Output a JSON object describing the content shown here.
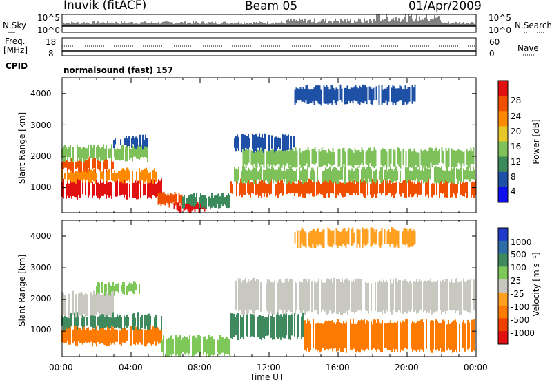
{
  "header": {
    "station": "Inuvik (fitACF)",
    "beam": "Beam 05",
    "date": "01/Apr/2009"
  },
  "top_panels": {
    "nsky_label": "N.Sky",
    "nsky_ticks": [
      "10^5",
      "10^0"
    ],
    "nsearch_ticks": [
      "10^5",
      "10^0"
    ],
    "nsearch_label": "N.Search",
    "freq_label": "Freq.",
    "freq_unit": "[MHz]",
    "freq_ticks": [
      "18",
      "8"
    ],
    "nave_ticks": [
      "60",
      "0"
    ],
    "nave_label": "Nave",
    "cpid_label": "CPID",
    "cpid_value": "normalsound (fast) 157"
  },
  "chart_data": [
    {
      "type": "heatmap",
      "name": "power",
      "ylabel": "Slant Range [km]",
      "y_ticks": [
        "1000",
        "2000",
        "3000",
        "4000"
      ],
      "ylim": [
        200,
        4500
      ],
      "xlim": [
        0,
        24
      ],
      "colorbar": {
        "label": "Power [dB]",
        "ticks": [
          "4",
          "8",
          "12",
          "16",
          "20",
          "24",
          "28"
        ],
        "range": [
          0,
          32
        ],
        "colors": [
          "#1010ee",
          "#1e50a6",
          "#3a8a5c",
          "#7ec05a",
          "#e6c82a",
          "#ff8a00",
          "#f05000",
          "#e21010"
        ]
      },
      "bands": [
        {
          "t0": 0.0,
          "t1": 5.8,
          "r0": 700,
          "r1": 1200,
          "level": 7
        },
        {
          "t0": 0.0,
          "t1": 5.5,
          "r0": 1200,
          "r1": 1550,
          "level": 5
        },
        {
          "t0": 0.0,
          "t1": 3.0,
          "r0": 1550,
          "r1": 1900,
          "level": 6
        },
        {
          "t0": 0.0,
          "t1": 5.0,
          "r0": 1900,
          "r1": 2300,
          "level": 3
        },
        {
          "t0": 3.0,
          "t1": 5.0,
          "r0": 2300,
          "r1": 2600,
          "level": 1
        },
        {
          "t0": 5.5,
          "t1": 7.0,
          "r0": 450,
          "r1": 800,
          "level": 6
        },
        {
          "t0": 6.5,
          "t1": 8.5,
          "r0": 250,
          "r1": 500,
          "level": 7
        },
        {
          "t0": 7.0,
          "t1": 9.8,
          "r0": 400,
          "r1": 750,
          "level": 2
        },
        {
          "t0": 9.8,
          "t1": 24.0,
          "r0": 750,
          "r1": 1200,
          "level": 6
        },
        {
          "t0": 10.0,
          "t1": 24.0,
          "r0": 1200,
          "r1": 1600,
          "level": 3
        },
        {
          "t0": 10.5,
          "t1": 24.0,
          "r0": 1700,
          "r1": 2200,
          "level": 3
        },
        {
          "t0": 10.0,
          "t1": 13.5,
          "r0": 2200,
          "r1": 2650,
          "level": 1
        },
        {
          "t0": 13.5,
          "t1": 20.5,
          "r0": 3700,
          "r1": 4200,
          "level": 1
        }
      ]
    },
    {
      "type": "heatmap",
      "name": "velocity",
      "ylabel": "Slant Range [km]",
      "xlabel": "Time UT",
      "x_ticks": [
        "00:00",
        "04:00",
        "08:00",
        "12:00",
        "16:00",
        "20:00",
        "00:00"
      ],
      "y_ticks": [
        "1000",
        "2000",
        "3000",
        "4000"
      ],
      "ylim": [
        200,
        4500
      ],
      "xlim": [
        0,
        24
      ],
      "colorbar": {
        "label": "Velocity [m s⁻¹]",
        "ticks": [
          "1000",
          "500",
          "100",
          "25",
          "-25",
          "-100",
          "-500",
          "-1000"
        ],
        "colors": [
          "#1e3cc8",
          "#2e6ea8",
          "#3e8a5e",
          "#7ec85a",
          "#c8c8c0",
          "#ffa020",
          "#ff7a00",
          "#f04000",
          "#e21010"
        ]
      },
      "bands": [
        {
          "t0": 0.0,
          "t1": 5.8,
          "r0": 600,
          "r1": 1100,
          "level": 6
        },
        {
          "t0": 0.0,
          "t1": 5.8,
          "r0": 1100,
          "r1": 1500,
          "level": 2
        },
        {
          "t0": 0.0,
          "t1": 3.0,
          "r0": 1500,
          "r1": 2200,
          "level": 4
        },
        {
          "t0": 2.0,
          "t1": 4.5,
          "r0": 2200,
          "r1": 2500,
          "level": 3
        },
        {
          "t0": 5.8,
          "t1": 9.8,
          "r0": 250,
          "r1": 800,
          "level": 3
        },
        {
          "t0": 9.8,
          "t1": 14.0,
          "r0": 800,
          "r1": 1500,
          "level": 2
        },
        {
          "t0": 14.0,
          "t1": 24.0,
          "r0": 400,
          "r1": 1300,
          "level": 6
        },
        {
          "t0": 10.0,
          "t1": 24.0,
          "r0": 1600,
          "r1": 2600,
          "level": 4
        },
        {
          "t0": 13.5,
          "t1": 20.5,
          "r0": 3700,
          "r1": 4200,
          "level": 5
        }
      ]
    }
  ]
}
